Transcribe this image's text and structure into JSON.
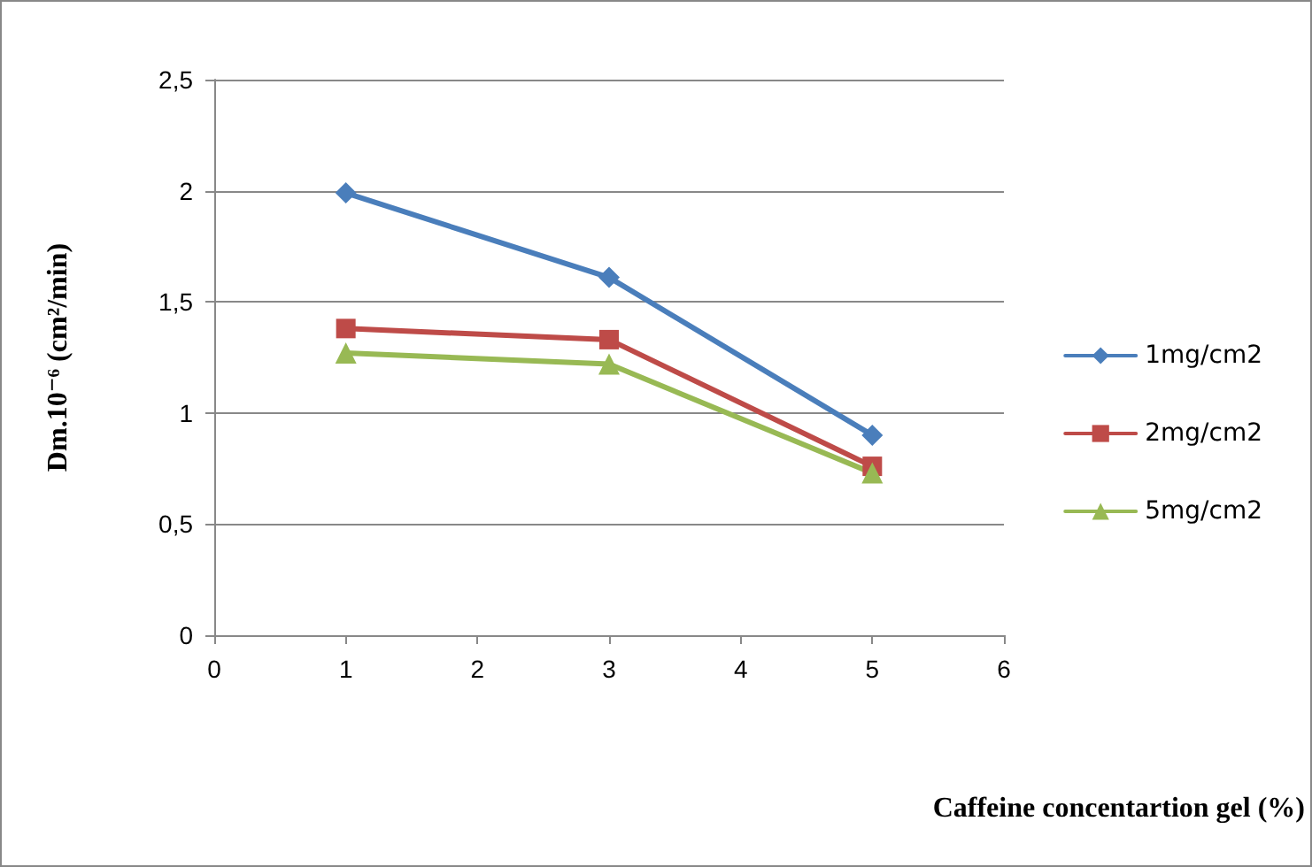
{
  "chart_data": {
    "type": "line",
    "xlabel": "Caffeine concentartion gel (%)",
    "ylabel": "Dm.10⁻⁶ (cm²/min)",
    "x": [
      1,
      3,
      5
    ],
    "series": [
      {
        "name": "1mg/cm2",
        "color": "#4a7ebb",
        "marker": "diamond",
        "values": [
          1.99,
          1.61,
          0.9
        ]
      },
      {
        "name": "2mg/cm2",
        "color": "#be4b48",
        "marker": "square",
        "values": [
          1.38,
          1.33,
          0.76
        ]
      },
      {
        "name": "5mg/cm2",
        "color": "#98b954",
        "marker": "triangle",
        "values": [
          1.27,
          1.22,
          0.73
        ]
      }
    ],
    "xlim": [
      0,
      6
    ],
    "xticks": [
      0,
      1,
      2,
      3,
      4,
      5,
      6
    ],
    "ylim": [
      0,
      2.5
    ],
    "yticks": [
      0,
      {
        "value": 0.5,
        "label": "0,5"
      },
      1,
      {
        "value": 1.5,
        "label": "1,5"
      },
      2,
      {
        "value": 2.5,
        "label": "2,5"
      }
    ],
    "grid": "y",
    "legend": "right",
    "line_style": "solid"
  }
}
